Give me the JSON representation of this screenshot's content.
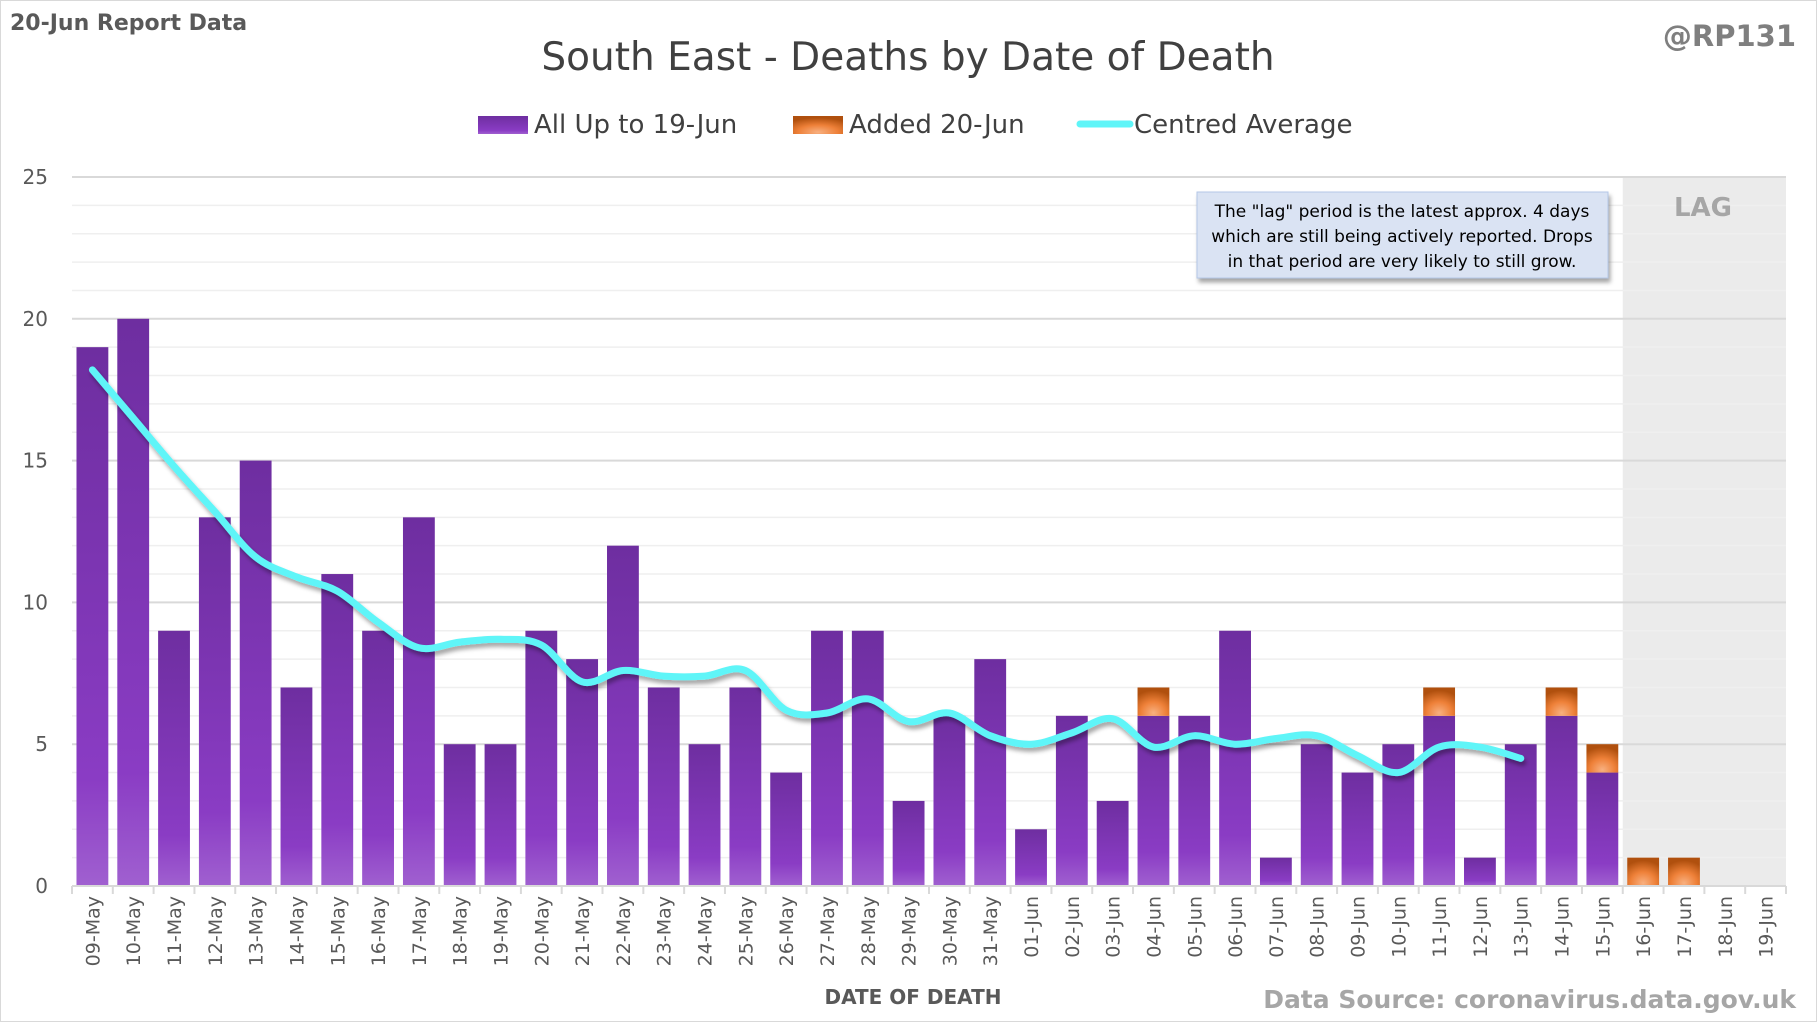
{
  "corner_label": "20-Jun Report Data",
  "handle": "@RP131",
  "source": "Data Source: coronavirus.data.gov.uk",
  "annotation": [
    "The \"lag\" period is the latest approx. 4 days",
    "which are still being actively reported. Drops",
    "in that period are very likely to still grow."
  ],
  "lag_label": "LAG",
  "colors": {
    "base": "#7a30b0",
    "added": "#e0782c",
    "average": "#5ff5f8",
    "lag_shade": "#ebebeb"
  },
  "chart_data": {
    "type": "bar",
    "stacked": true,
    "title": "South East - Deaths by Date of Death",
    "xlabel": "DATE OF DEATH",
    "ylabel": "",
    "ylim": [
      0,
      25
    ],
    "yticks": [
      0,
      5,
      10,
      15,
      20,
      25
    ],
    "grid": true,
    "legend_placement": "top",
    "lag_categories": [
      "16-Jun",
      "17-Jun",
      "18-Jun",
      "19-Jun"
    ],
    "categories": [
      "09-May",
      "10-May",
      "11-May",
      "12-May",
      "13-May",
      "14-May",
      "15-May",
      "16-May",
      "17-May",
      "18-May",
      "19-May",
      "20-May",
      "21-May",
      "22-May",
      "23-May",
      "24-May",
      "25-May",
      "26-May",
      "27-May",
      "28-May",
      "29-May",
      "30-May",
      "31-May",
      "01-Jun",
      "02-Jun",
      "03-Jun",
      "04-Jun",
      "05-Jun",
      "06-Jun",
      "07-Jun",
      "08-Jun",
      "09-Jun",
      "10-Jun",
      "11-Jun",
      "12-Jun",
      "13-Jun",
      "14-Jun",
      "15-Jun",
      "16-Jun",
      "17-Jun",
      "18-Jun",
      "19-Jun"
    ],
    "series": [
      {
        "name": "All Up to 19-Jun",
        "kind": "bar",
        "values": [
          19,
          20,
          9,
          13,
          15,
          7,
          11,
          9,
          13,
          5,
          5,
          9,
          8,
          12,
          7,
          5,
          7,
          4,
          9,
          9,
          3,
          6,
          8,
          2,
          6,
          3,
          6,
          6,
          9,
          1,
          5,
          4,
          5,
          6,
          1,
          5,
          6,
          4,
          0,
          0,
          0,
          0
        ]
      },
      {
        "name": "Added 20-Jun",
        "kind": "bar",
        "values": [
          0,
          0,
          0,
          0,
          0,
          0,
          0,
          0,
          0,
          0,
          0,
          0,
          0,
          0,
          0,
          0,
          0,
          0,
          0,
          0,
          0,
          0,
          0,
          0,
          0,
          0,
          1,
          0,
          0,
          0,
          0,
          0,
          0,
          1,
          0,
          0,
          1,
          1,
          1,
          1,
          0,
          0
        ]
      },
      {
        "name": "Centred Average",
        "kind": "line",
        "values": [
          18.2,
          16.5,
          14.8,
          13.2,
          11.6,
          10.9,
          10.4,
          9.3,
          8.4,
          8.6,
          8.7,
          8.5,
          7.2,
          7.6,
          7.4,
          7.4,
          7.6,
          6.2,
          6.1,
          6.6,
          5.8,
          6.1,
          5.3,
          5.0,
          5.4,
          5.9,
          4.9,
          5.3,
          5.0,
          5.2,
          5.3,
          4.6,
          4.0,
          4.9,
          4.9,
          4.5,
          null,
          null,
          null,
          null,
          null,
          null
        ]
      }
    ]
  }
}
